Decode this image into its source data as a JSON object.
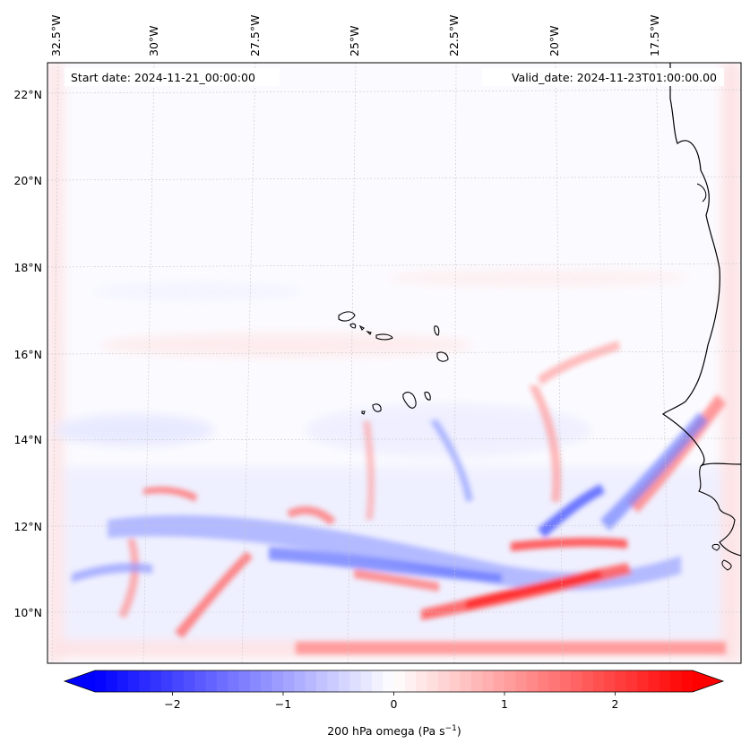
{
  "map": {
    "start_date": "Start date: 2024-11-21_00:00:00",
    "valid_date": "Valid_date: 2024-11-23T01:00:00.00",
    "lon_labels": [
      "32.5°W",
      "30°W",
      "27.5°W",
      "25°W",
      "22.5°W",
      "20°W",
      "17.5°W"
    ],
    "lat_labels": [
      "22°N",
      "20°N",
      "18°N",
      "16°N",
      "14°N",
      "12°N",
      "10°N"
    ]
  },
  "colorbar": {
    "label": "200 hPa omega (Pa s",
    "label_sup": "−1",
    "label_close": ")",
    "ticks": [
      "−2",
      "−1",
      "0",
      "1",
      "2"
    ],
    "tick_values": [
      -2,
      -1,
      0,
      1,
      2
    ],
    "range": [
      -2.7,
      2.7
    ],
    "cmap": "bwr",
    "neg_color": "#0000ff",
    "mid_color": "#ffffff",
    "pos_color": "#ff0000"
  }
}
